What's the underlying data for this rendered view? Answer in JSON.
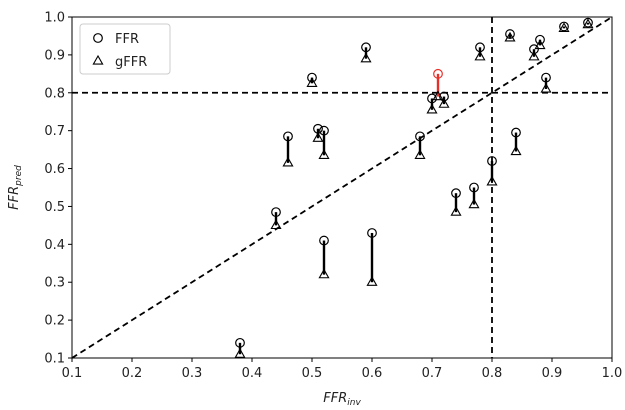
{
  "chart_data": {
    "type": "scatter",
    "xlabel": {
      "main": "FFR",
      "sub": "inv"
    },
    "ylabel": {
      "main": "FFR",
      "sub": "pred"
    },
    "xlim": [
      0.1,
      1.0
    ],
    "ylim": [
      0.1,
      1.0
    ],
    "xticks": [
      "0.1",
      "0.2",
      "0.3",
      "0.4",
      "0.5",
      "0.6",
      "0.7",
      "0.8",
      "0.9",
      "1.0"
    ],
    "yticks": [
      "0.1",
      "0.2",
      "0.3",
      "0.4",
      "0.5",
      "0.6",
      "0.7",
      "0.8",
      "0.9",
      "1.0"
    ],
    "grid": false,
    "legend_position": "top-left",
    "reference_lines": {
      "identity": true,
      "vertical_x": 0.8,
      "horizontal_y": 0.8
    },
    "series": [
      {
        "name": "FFR",
        "marker": "circle"
      },
      {
        "name": "gFFR",
        "marker": "triangle"
      }
    ],
    "colors": {
      "default": "#000000",
      "highlight": "#e8302a"
    },
    "points": [
      {
        "x": 0.38,
        "ffr": 0.14,
        "gffr": 0.11
      },
      {
        "x": 0.44,
        "ffr": 0.485,
        "gffr": 0.45
      },
      {
        "x": 0.46,
        "ffr": 0.685,
        "gffr": 0.615
      },
      {
        "x": 0.5,
        "ffr": 0.84,
        "gffr": 0.825
      },
      {
        "x": 0.51,
        "ffr": 0.705,
        "gffr": 0.68
      },
      {
        "x": 0.52,
        "ffr": 0.7,
        "gffr": 0.635
      },
      {
        "x": 0.52,
        "ffr": 0.41,
        "gffr": 0.32
      },
      {
        "x": 0.59,
        "ffr": 0.92,
        "gffr": 0.89
      },
      {
        "x": 0.6,
        "ffr": 0.43,
        "gffr": 0.3
      },
      {
        "x": 0.68,
        "ffr": 0.685,
        "gffr": 0.635
      },
      {
        "x": 0.7,
        "ffr": 0.785,
        "gffr": 0.755
      },
      {
        "x": 0.71,
        "ffr": 0.85,
        "gffr": 0.79,
        "highlight": true
      },
      {
        "x": 0.72,
        "ffr": 0.79,
        "gffr": 0.77
      },
      {
        "x": 0.74,
        "ffr": 0.535,
        "gffr": 0.485
      },
      {
        "x": 0.77,
        "ffr": 0.55,
        "gffr": 0.505
      },
      {
        "x": 0.78,
        "ffr": 0.92,
        "gffr": 0.895
      },
      {
        "x": 0.8,
        "ffr": 0.62,
        "gffr": 0.565
      },
      {
        "x": 0.83,
        "ffr": 0.955,
        "gffr": 0.945
      },
      {
        "x": 0.84,
        "ffr": 0.695,
        "gffr": 0.645
      },
      {
        "x": 0.87,
        "ffr": 0.915,
        "gffr": 0.895
      },
      {
        "x": 0.88,
        "ffr": 0.94,
        "gffr": 0.925
      },
      {
        "x": 0.89,
        "ffr": 0.84,
        "gffr": 0.81
      },
      {
        "x": 0.92,
        "ffr": 0.975,
        "gffr": 0.97
      },
      {
        "x": 0.96,
        "ffr": 0.985,
        "gffr": 0.98
      }
    ]
  }
}
